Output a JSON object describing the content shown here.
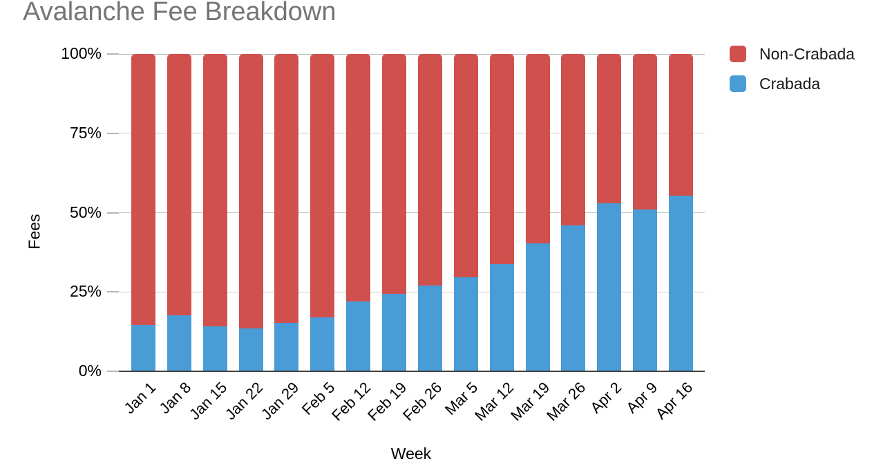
{
  "title": "Avalanche Fee Breakdown",
  "colors": {
    "crabada": "#4a9cd6",
    "non_crabada": "#d0504e",
    "title_text": "#757575",
    "gridline": "#cccccc",
    "axis_line": "#424242"
  },
  "chart_data": {
    "type": "bar",
    "stacked": true,
    "stack_mode": "percent",
    "title": "Avalanche Fee Breakdown",
    "xlabel": "Week",
    "ylabel": "Fees",
    "ylim": [
      0,
      100
    ],
    "ytick_values": [
      0,
      25,
      50,
      75,
      100
    ],
    "ytick_labels": [
      "0%",
      "25%",
      "50%",
      "75%",
      "100%"
    ],
    "grid": true,
    "legend_position": "top-right",
    "categories": [
      "Jan 1",
      "Jan 8",
      "Jan 15",
      "Jan 22",
      "Jan 29",
      "Feb 5",
      "Feb 12",
      "Feb 19",
      "Feb 26",
      "Mar 5",
      "Mar 12",
      "Mar 19",
      "Mar 26",
      "Apr 2",
      "Apr 9",
      "Apr 16"
    ],
    "series": [
      {
        "name": "Crabada",
        "color": "#4a9cd6",
        "values": [
          14.5,
          17.7,
          14.2,
          13.6,
          15.2,
          17.0,
          22.0,
          24.5,
          27.0,
          29.7,
          33.8,
          40.4,
          46.0,
          53.0,
          51.0,
          55.3
        ]
      },
      {
        "name": "Non-Crabada",
        "color": "#d0504e",
        "values": [
          85.5,
          82.3,
          85.8,
          86.4,
          84.8,
          83.0,
          78.0,
          75.5,
          73.0,
          70.3,
          66.2,
          59.6,
          54.0,
          47.0,
          49.0,
          44.7
        ]
      }
    ],
    "legend_items": [
      {
        "label": "Non-Crabada",
        "color": "#d0504e"
      },
      {
        "label": "Crabada",
        "color": "#4a9cd6"
      }
    ]
  }
}
